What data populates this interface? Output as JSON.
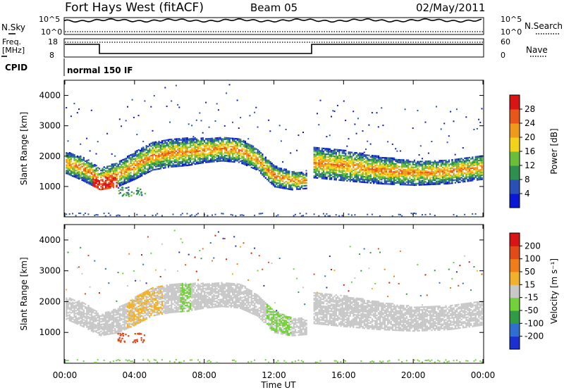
{
  "header": {
    "station": "Fort Hays West (fitACF)",
    "beam": "Beam 05",
    "date": "02/May/2011"
  },
  "top_panels": {
    "nsky_label": "N.Sky",
    "nsearch_label": "N.Search",
    "noise_ticks": [
      "10^5",
      "10^0"
    ],
    "freq_label_line1": "Freq.",
    "freq_label_line2": "[MHz]",
    "freq_ticks": [
      "18",
      "8"
    ],
    "nave_label": "Nave",
    "nave_ticks": [
      "60",
      "0"
    ],
    "cpid_label": "CPID",
    "cpid_value": "normal 150 IF"
  },
  "chart_data": [
    {
      "type": "heatmap",
      "title": "",
      "xlabel": "Time UT",
      "ylabel": "Slant Range [km]",
      "xlim": [
        0,
        24
      ],
      "ylim": [
        0,
        4500
      ],
      "xticks": [
        "00:00",
        "04:00",
        "08:00",
        "12:00",
        "16:00",
        "20:00",
        "00:00"
      ],
      "yticks": [
        1000,
        2000,
        3000,
        4000
      ],
      "colorbar": {
        "label": "Power [dB]",
        "ticks": [
          "4",
          "8",
          "12",
          "16",
          "20",
          "24",
          "28"
        ],
        "colors": [
          "#0a18d6",
          "#2a4fb6",
          "#2f8f4f",
          "#6abf3a",
          "#f3d21a",
          "#f09a1c",
          "#e8561a",
          "#d81414"
        ]
      },
      "bands": [
        {
          "t": 0.0,
          "center": 1800,
          "width": 350
        },
        {
          "t": 1.0,
          "center": 1600,
          "width": 400
        },
        {
          "t": 2.0,
          "center": 1250,
          "width": 350
        },
        {
          "t": 3.0,
          "center": 1400,
          "width": 400
        },
        {
          "t": 4.0,
          "center": 1700,
          "width": 450
        },
        {
          "t": 5.0,
          "center": 2000,
          "width": 450
        },
        {
          "t": 6.0,
          "center": 2100,
          "width": 450
        },
        {
          "t": 7.0,
          "center": 2150,
          "width": 450
        },
        {
          "t": 8.0,
          "center": 2200,
          "width": 400
        },
        {
          "t": 9.0,
          "center": 2250,
          "width": 400
        },
        {
          "t": 10.0,
          "center": 2200,
          "width": 400
        },
        {
          "t": 11.0,
          "center": 1900,
          "width": 350
        },
        {
          "t": 12.0,
          "center": 1350,
          "width": 350
        },
        {
          "t": 13.0,
          "center": 1200,
          "width": 300
        },
        {
          "t": 14.0,
          "center": 1200,
          "width": 250
        },
        {
          "t": 14.2,
          "center": 1800,
          "width": 500
        },
        {
          "t": 16.0,
          "center": 1700,
          "width": 500
        },
        {
          "t": 18.0,
          "center": 1550,
          "width": 450
        },
        {
          "t": 20.0,
          "center": 1450,
          "width": 400
        },
        {
          "t": 22.0,
          "center": 1500,
          "width": 400
        },
        {
          "t": 24.0,
          "center": 1650,
          "width": 400
        }
      ]
    },
    {
      "type": "heatmap",
      "title": "",
      "xlabel": "Time UT",
      "ylabel": "Slant Range [km]",
      "xlim": [
        0,
        24
      ],
      "ylim": [
        0,
        4500
      ],
      "xticks": [
        "00:00",
        "04:00",
        "08:00",
        "12:00",
        "16:00",
        "20:00",
        "00:00"
      ],
      "yticks": [
        1000,
        2000,
        3000,
        4000
      ],
      "colorbar": {
        "label": "Velocity [m s⁻¹]",
        "ticks": [
          "200",
          "100",
          "50",
          "15",
          "-15",
          "-50",
          "-100",
          "-200"
        ],
        "colors": [
          "#1c2fd0",
          "#2f6fcf",
          "#2f9b44",
          "#73d13a",
          "#c8c8c8",
          "#f2b12a",
          "#f07d1c",
          "#e24a1a",
          "#d81414"
        ]
      }
    }
  ]
}
